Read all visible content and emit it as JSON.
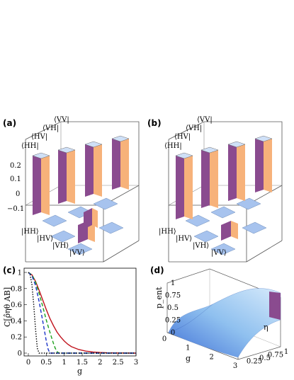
{
  "panels": {
    "a": {
      "label": "(a)"
    },
    "b": {
      "label": "(b)"
    },
    "c": {
      "label": "(c)"
    },
    "d": {
      "label": "(d)"
    }
  },
  "matrix_panels": {
    "row_labels": [
      "⟨HH|",
      "⟨HV|",
      "⟨VH|",
      "⟨VV|"
    ],
    "col_labels": [
      "|HH⟩",
      "|HV⟩",
      "|VH⟩",
      "|VV⟩"
    ],
    "z_ticks": [
      "0.2",
      "0.1",
      "0",
      "−0.1"
    ]
  },
  "chart_data": [
    {
      "panel": "c",
      "type": "line",
      "xlabel": "g",
      "ylabel": "C[ρ̂ηθ AB]",
      "xlim": [
        0,
        3
      ],
      "ylim": [
        0,
        1
      ],
      "xticks": [
        "0",
        "0.5",
        "1",
        "1.5",
        "2",
        "2.5",
        "3"
      ],
      "yticks": [
        "0",
        "0.2",
        "0.4",
        "0.6",
        "0.8",
        "1"
      ],
      "series": [
        {
          "style": "solid",
          "color": "#c0141e",
          "x": [
            0,
            0.1,
            0.2,
            0.3,
            0.4,
            0.5,
            0.6,
            0.7,
            0.8,
            0.9,
            1.0,
            1.1,
            1.2,
            1.4,
            1.6,
            1.8,
            2.0,
            2.2,
            2.5,
            3.0
          ],
          "y": [
            1.0,
            0.97,
            0.89,
            0.78,
            0.66,
            0.54,
            0.43,
            0.34,
            0.26,
            0.2,
            0.15,
            0.11,
            0.08,
            0.045,
            0.025,
            0.014,
            0.008,
            0.004,
            0.002,
            0.0
          ]
        },
        {
          "style": "dashed",
          "color": "#1aa01a",
          "x": [
            0,
            0.1,
            0.2,
            0.3,
            0.4,
            0.5,
            0.6,
            0.7,
            0.75,
            0.8,
            0.85,
            3.0
          ],
          "y": [
            1.0,
            0.97,
            0.88,
            0.74,
            0.58,
            0.41,
            0.26,
            0.12,
            0.06,
            0.02,
            0.0,
            0.0
          ]
        },
        {
          "style": "dashed",
          "color": "#1a32c8",
          "x": [
            0,
            0.1,
            0.2,
            0.3,
            0.4,
            0.5,
            0.55,
            0.6,
            3.0
          ],
          "y": [
            1.0,
            0.96,
            0.84,
            0.64,
            0.4,
            0.15,
            0.05,
            0.0,
            0.0
          ]
        },
        {
          "style": "dotted",
          "color": "#000000",
          "x": [
            0,
            0.05,
            0.1,
            0.15,
            0.2,
            0.25,
            0.3,
            3.0
          ],
          "y": [
            1.0,
            0.97,
            0.85,
            0.6,
            0.3,
            0.06,
            0.0,
            0.0
          ]
        }
      ]
    },
    {
      "panel": "d",
      "type": "heatmap",
      "xlabel": "g",
      "ylabel": "η",
      "zlabel": "p_ent",
      "xticks": [
        "0",
        "1",
        "2",
        "3"
      ],
      "yticks": [
        "0.25",
        "0.5",
        "0.75",
        "1"
      ],
      "zticks": [
        "0",
        "0.25",
        "0.5",
        "0.75",
        "1"
      ]
    }
  ]
}
